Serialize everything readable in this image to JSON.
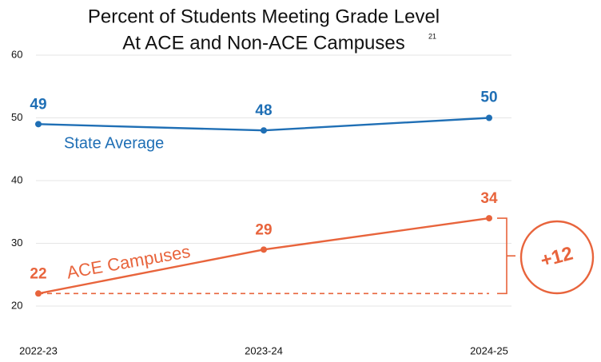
{
  "chart_data": {
    "type": "line",
    "title": [
      "Percent of Students Meeting Grade Level",
      "At ACE and Non-ACE Campuses"
    ],
    "footnote_ref": "21",
    "categories": [
      "2022-23",
      "2023-24",
      "2024-25"
    ],
    "series": [
      {
        "name": "State Average",
        "color": "#1f6fb5",
        "values": [
          49,
          48,
          50
        ]
      },
      {
        "name": "ACE Campuses",
        "color": "#e8643c",
        "values": [
          22,
          29,
          34
        ]
      }
    ],
    "ylim": [
      20,
      60
    ],
    "yticks": [
      20,
      30,
      40,
      50,
      60
    ],
    "grid": true,
    "annotation": "+12"
  }
}
